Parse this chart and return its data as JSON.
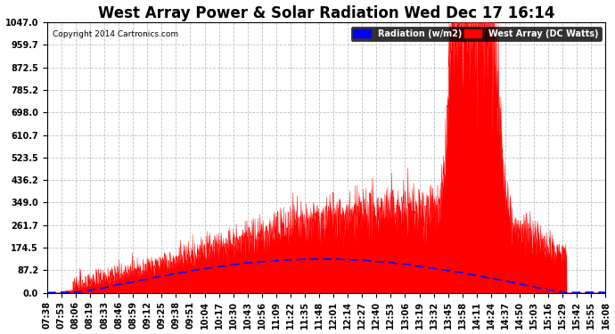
{
  "title": "West Array Power & Solar Radiation Wed Dec 17 16:14",
  "copyright": "Copyright 2014 Cartronics.com",
  "legend_labels": [
    "Radiation (w/m2)",
    "West Array (DC Watts)"
  ],
  "y_ticks": [
    0.0,
    87.2,
    174.5,
    261.7,
    349.0,
    436.2,
    523.5,
    610.7,
    698.0,
    785.2,
    872.5,
    959.7,
    1047.0
  ],
  "ylim": [
    0.0,
    1047.0
  ],
  "background_color": "#ffffff",
  "grid_color": "#c0c0c0",
  "red_color": "#ff0000",
  "blue_color": "#0000ff",
  "x_labels": [
    "07:38",
    "07:53",
    "08:06",
    "08:19",
    "08:33",
    "08:46",
    "08:59",
    "09:12",
    "09:25",
    "09:38",
    "09:51",
    "10:04",
    "10:17",
    "10:30",
    "10:43",
    "10:56",
    "11:09",
    "11:22",
    "11:35",
    "11:48",
    "12:01",
    "12:14",
    "12:27",
    "12:40",
    "12:53",
    "13:06",
    "13:19",
    "13:32",
    "13:45",
    "13:58",
    "14:11",
    "14:24",
    "14:37",
    "14:50",
    "15:03",
    "15:16",
    "15:29",
    "15:42",
    "15:55",
    "16:08"
  ],
  "title_fontsize": 12,
  "tick_fontsize": 7,
  "figsize": [
    6.9,
    3.75
  ],
  "dpi": 100
}
